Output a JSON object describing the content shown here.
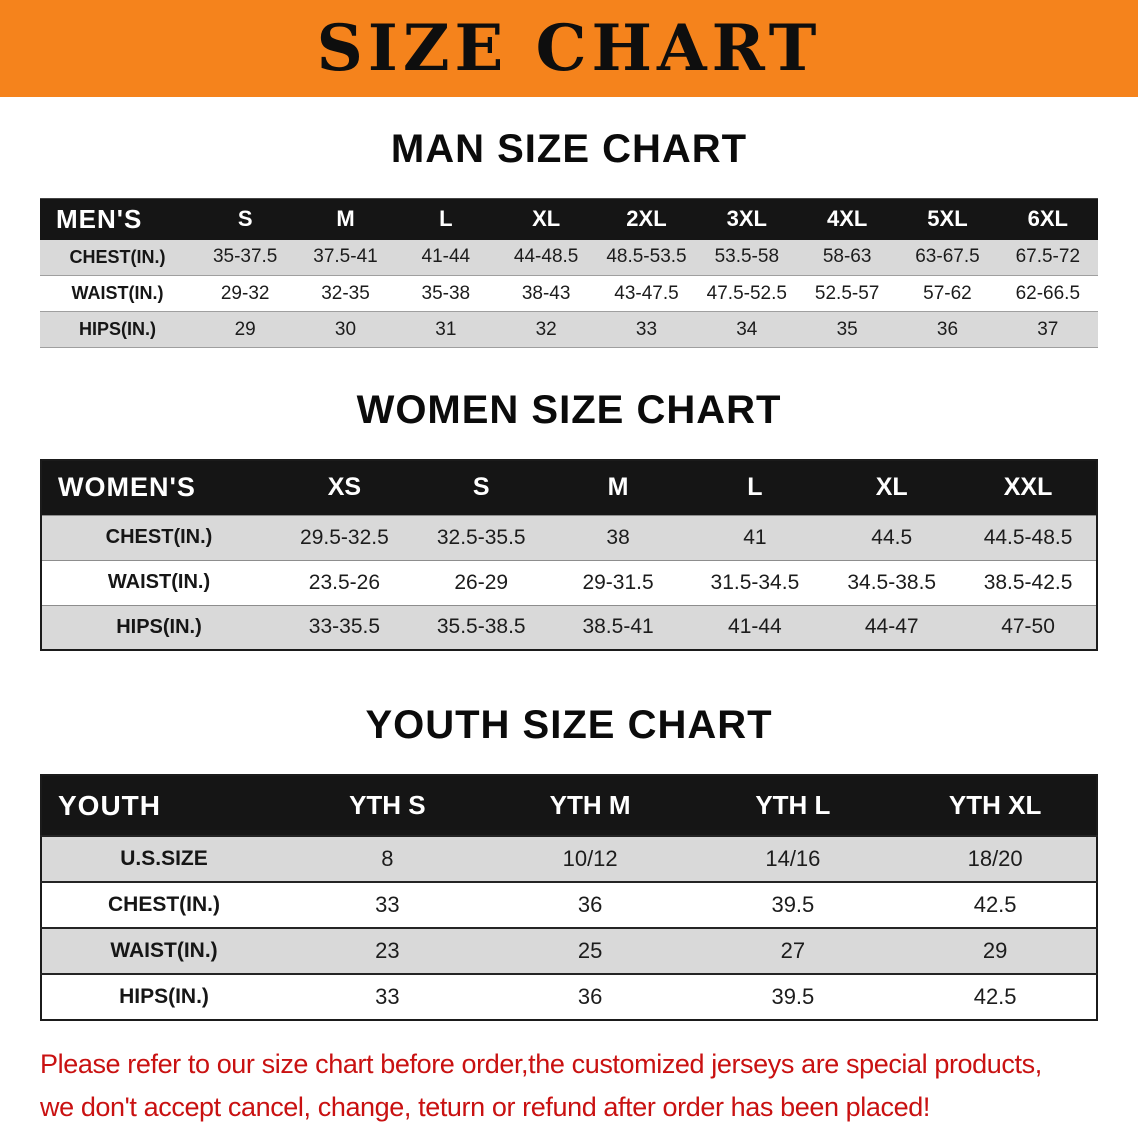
{
  "banner": {
    "title": "SIZE CHART"
  },
  "colors": {
    "banner_bg": "#f5831c",
    "banner_text": "#0e0e0e",
    "table_header_bg": "#151515",
    "table_header_text": "#ffffff",
    "row_stripe": "#d9d9d9",
    "note_red": "#c91111"
  },
  "chart_data": [
    {
      "type": "table",
      "title": "MAN SIZE CHART",
      "header": [
        "MEN'S",
        "S",
        "M",
        "L",
        "XL",
        "2XL",
        "3XL",
        "4XL",
        "5XL",
        "6XL"
      ],
      "rows": [
        [
          "CHEST(IN.)",
          "35-37.5",
          "37.5-41",
          "41-44",
          "44-48.5",
          "48.5-53.5",
          "53.5-58",
          "58-63",
          "63-67.5",
          "67.5-72"
        ],
        [
          "WAIST(IN.)",
          "29-32",
          "32-35",
          "35-38",
          "38-43",
          "43-47.5",
          "47.5-52.5",
          "52.5-57",
          "57-62",
          "62-66.5"
        ],
        [
          "HIPS(IN.)",
          "29",
          "30",
          "31",
          "32",
          "33",
          "34",
          "35",
          "36",
          "37"
        ]
      ]
    },
    {
      "type": "table",
      "title": "WOMEN SIZE CHART",
      "header": [
        "WOMEN'S",
        "XS",
        "S",
        "M",
        "L",
        "XL",
        "XXL"
      ],
      "rows": [
        [
          "CHEST(IN.)",
          "29.5-32.5",
          "32.5-35.5",
          "38",
          "41",
          "44.5",
          "44.5-48.5"
        ],
        [
          "WAIST(IN.)",
          "23.5-26",
          "26-29",
          "29-31.5",
          "31.5-34.5",
          "34.5-38.5",
          "38.5-42.5"
        ],
        [
          "HIPS(IN.)",
          "33-35.5",
          "35.5-38.5",
          "38.5-41",
          "41-44",
          "44-47",
          "47-50"
        ]
      ]
    },
    {
      "type": "table",
      "title": "YOUTH SIZE CHART",
      "header": [
        "YOUTH",
        "YTH S",
        "YTH M",
        "YTH L",
        "YTH XL"
      ],
      "rows": [
        [
          "U.S.SIZE",
          "8",
          "10/12",
          "14/16",
          "18/20"
        ],
        [
          "CHEST(IN.)",
          "33",
          "36",
          "39.5",
          "42.5"
        ],
        [
          "WAIST(IN.)",
          "23",
          "25",
          "27",
          "29"
        ],
        [
          "HIPS(IN.)",
          "33",
          "36",
          "39.5",
          "42.5"
        ]
      ]
    }
  ],
  "note": {
    "line1": "Please refer to our size chart before order,the customized jerseys are special products,",
    "line2": "we don't accept cancel, change, teturn or refund after order has been placed!"
  }
}
